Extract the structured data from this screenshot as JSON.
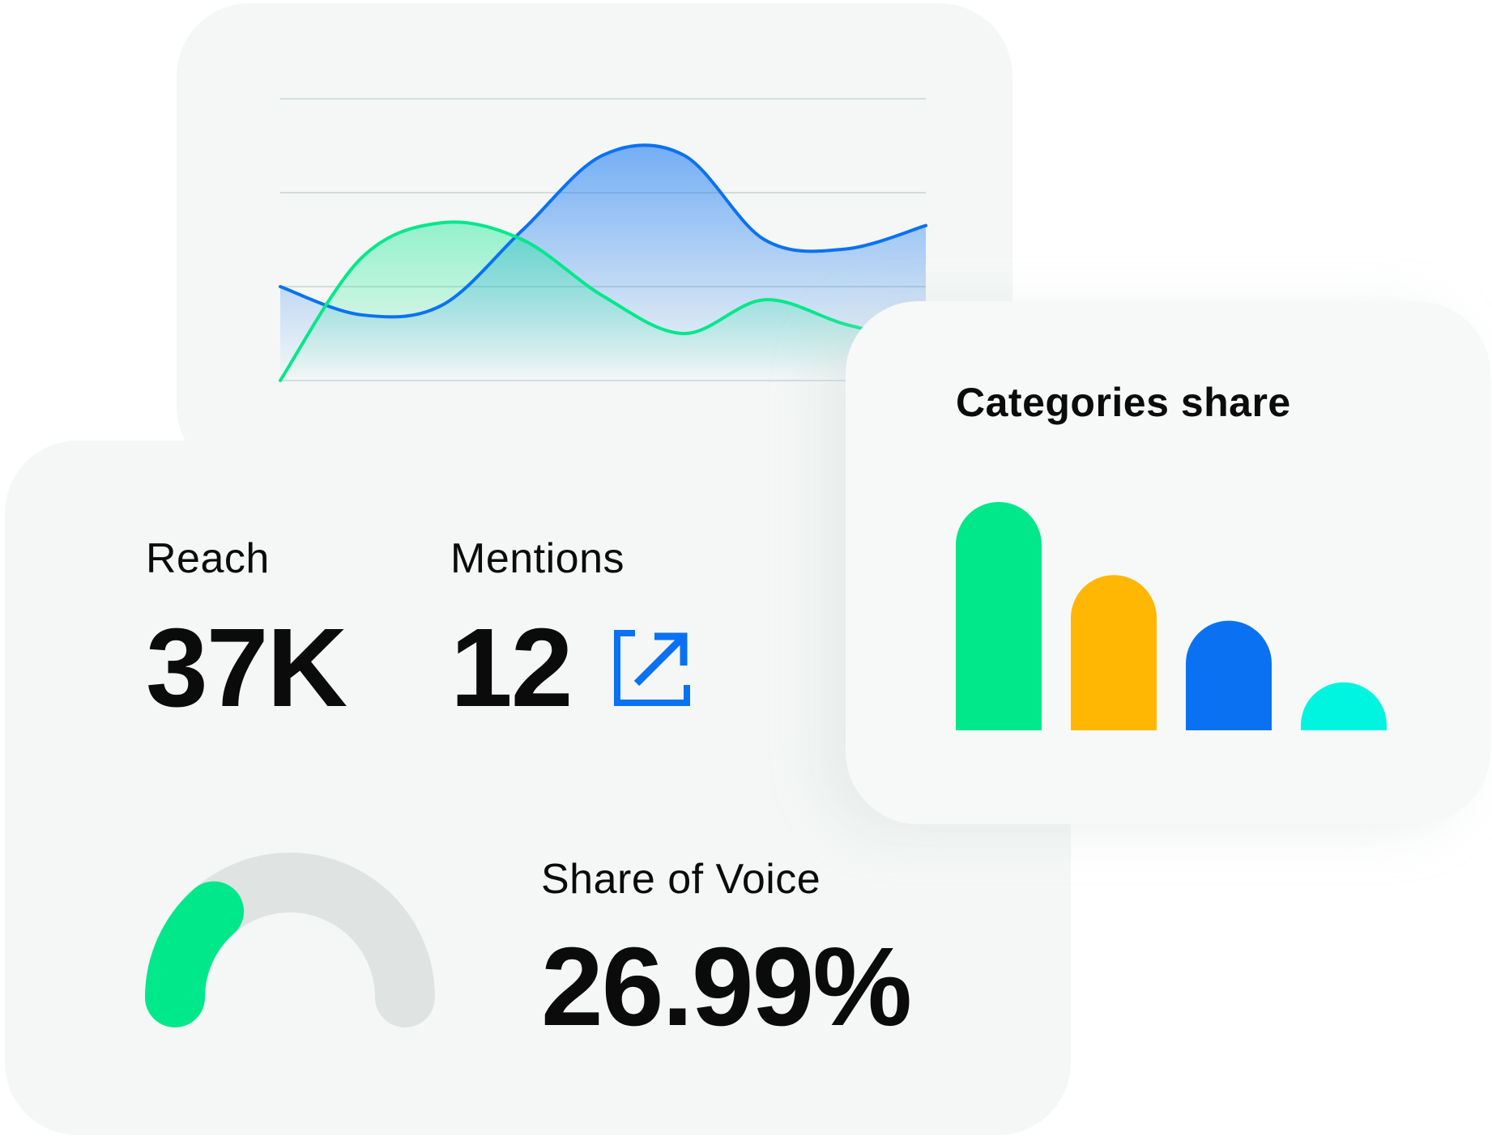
{
  "colors": {
    "green": "#00e88a",
    "blue": "#0a72f2",
    "yellow": "#ffb703",
    "cyan": "#00f5e0",
    "gauge_track": "#dfe3e1",
    "gridline": "#d3dcdb",
    "card_bg": "#f4f7f5"
  },
  "stats": {
    "reach": {
      "label": "Reach",
      "value": "37K"
    },
    "mentions": {
      "label": "Mentions",
      "value": "12",
      "icon": "external-link-icon"
    },
    "share_of_voice": {
      "label": "Share of Voice",
      "value": "26.99%",
      "fraction": 0.2699
    }
  },
  "categories": {
    "title": "Categories share"
  },
  "chart_data": [
    {
      "type": "line",
      "title": "",
      "xlabel": "",
      "ylabel": "",
      "grid": true,
      "gridlines": 4,
      "ylim": [
        0,
        3
      ],
      "x": [
        0,
        1,
        2,
        3,
        4,
        5,
        6,
        7,
        8
      ],
      "series": [
        {
          "color": "#0a72f2",
          "values": [
            1.0,
            0.7,
            0.8,
            1.6,
            2.4,
            2.4,
            1.5,
            1.4,
            1.65
          ]
        },
        {
          "color": "#00e88a",
          "values": [
            0.0,
            1.3,
            1.68,
            1.5,
            0.9,
            0.5,
            0.86,
            0.6,
            0.4
          ]
        }
      ]
    },
    {
      "type": "bar",
      "title": "Categories share",
      "categories": [
        "",
        "",
        "",
        ""
      ],
      "values": [
        100,
        68,
        48,
        21
      ],
      "colors": [
        "#00e88a",
        "#ffb703",
        "#0a72f2",
        "#00f5e0"
      ],
      "ylim": [
        0,
        100
      ]
    }
  ]
}
